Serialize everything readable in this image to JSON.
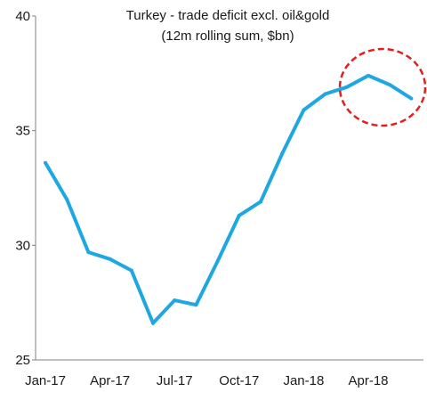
{
  "chart_data": {
    "type": "line",
    "title": "Turkey - trade deficit excl. oil&gold",
    "subtitle": "(12m rolling sum, $bn)",
    "xlabel": "",
    "ylabel": "",
    "ylim": [
      25,
      40
    ],
    "y_ticks": [
      25,
      30,
      35,
      40
    ],
    "x_tick_labels": [
      "Jan-17",
      "Apr-17",
      "Jul-17",
      "Oct-17",
      "Jan-18",
      "Apr-18"
    ],
    "x": [
      "Jan-17",
      "Feb-17",
      "Mar-17",
      "Apr-17",
      "May-17",
      "Jun-17",
      "Jul-17",
      "Aug-17",
      "Sep-17",
      "Oct-17",
      "Nov-17",
      "Dec-17",
      "Jan-18",
      "Feb-18",
      "Mar-18",
      "Apr-18",
      "May-18",
      "Jun-18"
    ],
    "series": [
      {
        "values": [
          33.6,
          32.0,
          29.7,
          29.4,
          28.9,
          26.6,
          27.6,
          27.4,
          29.3,
          31.3,
          31.9,
          34.0,
          35.9,
          36.6,
          36.9,
          37.4,
          37.0,
          36.4
        ],
        "color": "#1ea7e1"
      }
    ],
    "annotation": {
      "type": "dashed-ellipse",
      "color": "#e02020",
      "highlights": [
        "Mar-18",
        "Apr-18",
        "May-18",
        "Jun-18"
      ]
    },
    "grid": false,
    "legend": "none"
  }
}
